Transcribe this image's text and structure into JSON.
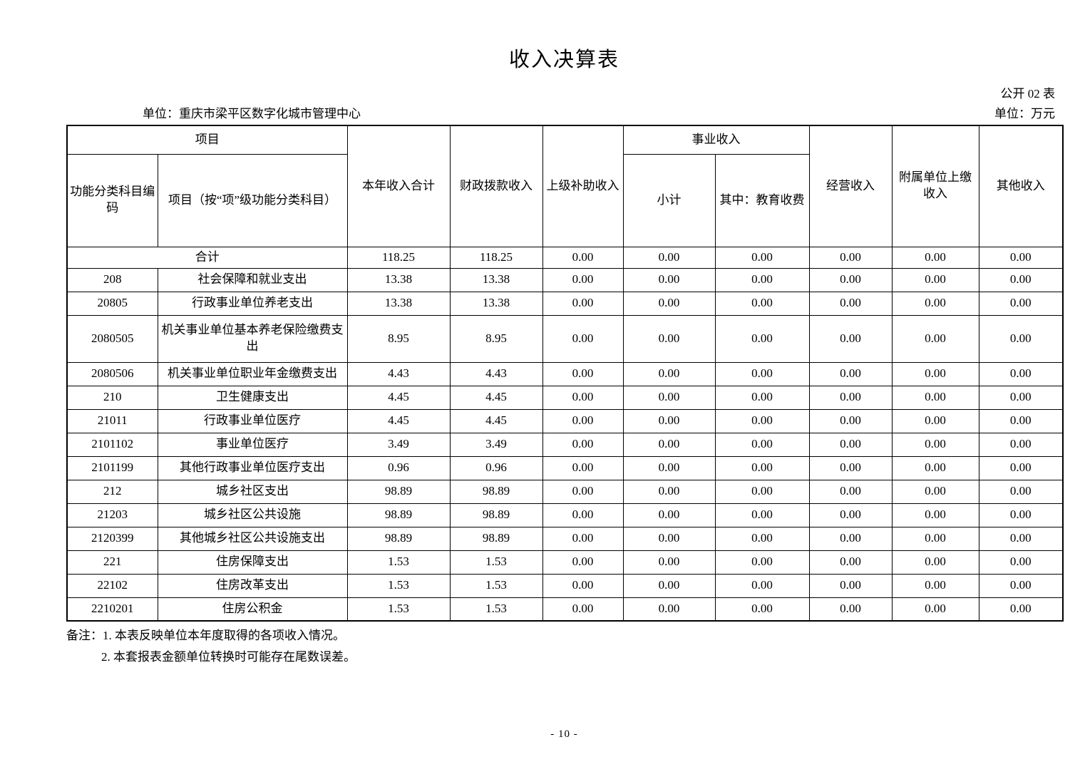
{
  "page": {
    "title": "收入决算表",
    "table_code": "公开 02 表",
    "org_unit": "单位：重庆市梁平区数字化城市管理中心",
    "money_unit": "单位：万元",
    "page_number": "- 10 -",
    "notes": [
      "备注：1. 本表反映单位本年度取得的各项收入情况。",
      "2. 本套报表金额单位转换时可能存在尾数误差。"
    ]
  },
  "table": {
    "header": {
      "group_project": "项目",
      "col_code": "功能分类科目编码",
      "col_item": "项目（按“项”级功能分类科目）",
      "col_year_total": "本年收入合计",
      "col_fiscal": "财政拨款收入",
      "col_superior_subsidy": "上级补助收入",
      "group_business": "事业收入",
      "col_subtotal": "小计",
      "col_education_fee": "其中：教育收费",
      "col_operating": "经营收入",
      "col_affiliated_remit": "附属单位上缴收入",
      "col_other": "其他收入"
    },
    "rows": [
      {
        "code": "",
        "name": "合计",
        "merged": true,
        "values": [
          "118.25",
          "118.25",
          "0.00",
          "0.00",
          "0.00",
          "0.00",
          "0.00",
          "0.00"
        ]
      },
      {
        "code": "208",
        "name": "社会保障和就业支出",
        "values": [
          "13.38",
          "13.38",
          "0.00",
          "0.00",
          "0.00",
          "0.00",
          "0.00",
          "0.00"
        ]
      },
      {
        "code": "20805",
        "name": "行政事业单位养老支出",
        "values": [
          "13.38",
          "13.38",
          "0.00",
          "0.00",
          "0.00",
          "0.00",
          "0.00",
          "0.00"
        ]
      },
      {
        "code": "2080505",
        "name": "机关事业单位基本养老保险缴费支出",
        "values": [
          "8.95",
          "8.95",
          "0.00",
          "0.00",
          "0.00",
          "0.00",
          "0.00",
          "0.00"
        ]
      },
      {
        "code": "2080506",
        "name": "机关事业单位职业年金缴费支出",
        "values": [
          "4.43",
          "4.43",
          "0.00",
          "0.00",
          "0.00",
          "0.00",
          "0.00",
          "0.00"
        ]
      },
      {
        "code": "210",
        "name": "卫生健康支出",
        "values": [
          "4.45",
          "4.45",
          "0.00",
          "0.00",
          "0.00",
          "0.00",
          "0.00",
          "0.00"
        ]
      },
      {
        "code": "21011",
        "name": "行政事业单位医疗",
        "values": [
          "4.45",
          "4.45",
          "0.00",
          "0.00",
          "0.00",
          "0.00",
          "0.00",
          "0.00"
        ]
      },
      {
        "code": "2101102",
        "name": "事业单位医疗",
        "values": [
          "3.49",
          "3.49",
          "0.00",
          "0.00",
          "0.00",
          "0.00",
          "0.00",
          "0.00"
        ]
      },
      {
        "code": "2101199",
        "name": "其他行政事业单位医疗支出",
        "values": [
          "0.96",
          "0.96",
          "0.00",
          "0.00",
          "0.00",
          "0.00",
          "0.00",
          "0.00"
        ]
      },
      {
        "code": "212",
        "name": "城乡社区支出",
        "values": [
          "98.89",
          "98.89",
          "0.00",
          "0.00",
          "0.00",
          "0.00",
          "0.00",
          "0.00"
        ]
      },
      {
        "code": "21203",
        "name": "城乡社区公共设施",
        "values": [
          "98.89",
          "98.89",
          "0.00",
          "0.00",
          "0.00",
          "0.00",
          "0.00",
          "0.00"
        ]
      },
      {
        "code": "2120399",
        "name": "其他城乡社区公共设施支出",
        "values": [
          "98.89",
          "98.89",
          "0.00",
          "0.00",
          "0.00",
          "0.00",
          "0.00",
          "0.00"
        ]
      },
      {
        "code": "221",
        "name": "住房保障支出",
        "values": [
          "1.53",
          "1.53",
          "0.00",
          "0.00",
          "0.00",
          "0.00",
          "0.00",
          "0.00"
        ]
      },
      {
        "code": "22102",
        "name": "住房改革支出",
        "values": [
          "1.53",
          "1.53",
          "0.00",
          "0.00",
          "0.00",
          "0.00",
          "0.00",
          "0.00"
        ]
      },
      {
        "code": "2210201",
        "name": "住房公积金",
        "values": [
          "1.53",
          "1.53",
          "0.00",
          "0.00",
          "0.00",
          "0.00",
          "0.00",
          "0.00"
        ]
      }
    ]
  }
}
